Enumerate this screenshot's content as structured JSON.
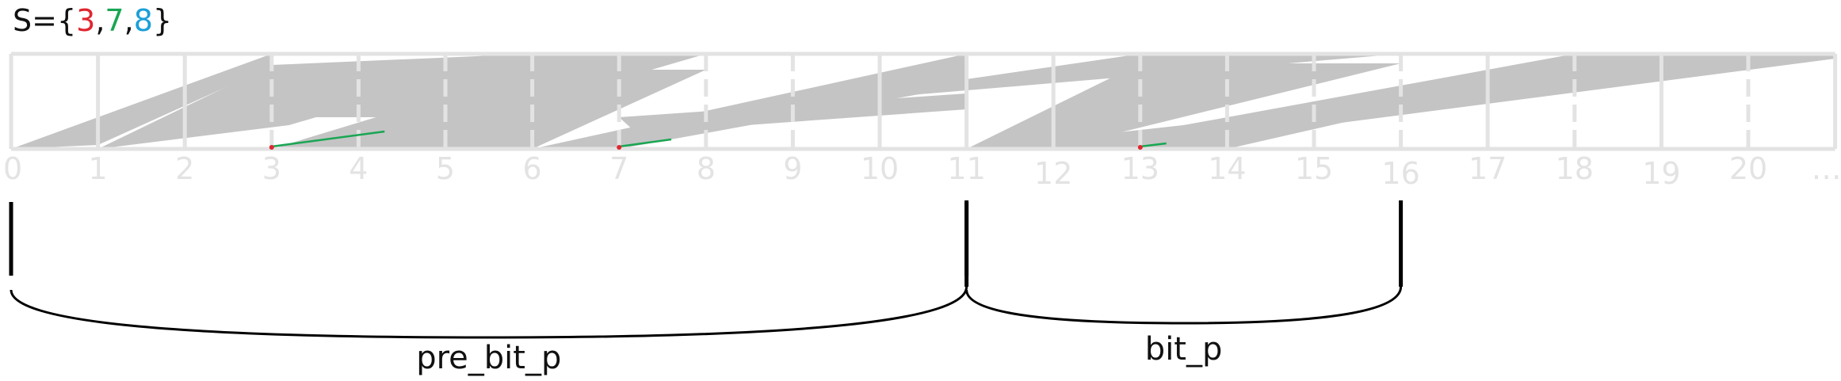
{
  "set_label": {
    "prefix": "S={",
    "suffix": "}",
    "elements": [
      {
        "value": "3",
        "color": "#e0262e"
      },
      {
        "value": "7",
        "color": "#19a653"
      },
      {
        "value": "8",
        "color": "#1a9fd8"
      }
    ],
    "separator": ","
  },
  "ticks": [
    "0",
    "1",
    "2",
    "3",
    "4",
    "5",
    "6",
    "7",
    "8",
    "9",
    "10",
    "11",
    "12",
    "13",
    "14",
    "15",
    "16",
    "17",
    "18",
    "19",
    "20",
    "…"
  ],
  "range_pre_bit_p": {
    "label": "pre_bit_p",
    "from": 0,
    "to": 11
  },
  "range_bit_p": {
    "label": "bit_p",
    "from": 11,
    "to": 16
  },
  "colors": {
    "grid": "#e3e3e3",
    "fill": "#c4c4c4",
    "bracket": "#000000",
    "green_line": "#19a653",
    "red_mark": "#e0262e"
  }
}
